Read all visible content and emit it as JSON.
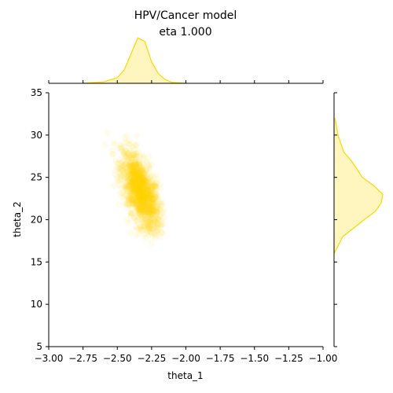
{
  "chart_data": {
    "type": "scatter",
    "title": "HPV/Cancer model",
    "subtitle": "eta 1.000",
    "xlabel": "theta_1",
    "ylabel": "theta_2",
    "xlim": [
      -3.0,
      -1.0
    ],
    "ylim": [
      5,
      35
    ],
    "xticks": [
      -3.0,
      -2.75,
      -2.5,
      -2.25,
      -2.0,
      -1.75,
      -1.5,
      -1.25,
      -1.0
    ],
    "xtick_labels": [
      "−3.00",
      "−2.75",
      "−2.50",
      "−2.25",
      "−2.00",
      "−1.75",
      "−1.50",
      "−1.25",
      "−1.00"
    ],
    "yticks": [
      5,
      10,
      15,
      20,
      25,
      30,
      35
    ],
    "ytick_labels": [
      "5",
      "10",
      "15",
      "20",
      "25",
      "30",
      "35"
    ],
    "grid": false,
    "color": "#ffd700",
    "joint": {
      "mean": [
        -2.33,
        23.3
      ],
      "sd": [
        0.07,
        2.3
      ],
      "correlation": -0.6,
      "x_range": [
        -2.7,
        -2.15
      ],
      "y_range": [
        17,
        32
      ]
    },
    "marginal_x": {
      "x": [
        -2.75,
        -2.6,
        -2.5,
        -2.45,
        -2.4,
        -2.35,
        -2.3,
        -2.25,
        -2.2,
        -2.15,
        -2.1,
        -2.0
      ],
      "density": [
        0.0,
        0.03,
        0.12,
        0.28,
        0.62,
        0.96,
        0.88,
        0.45,
        0.2,
        0.08,
        0.02,
        0.0
      ]
    },
    "marginal_y": {
      "y": [
        16,
        18,
        20,
        21,
        22,
        23,
        24,
        25,
        26,
        27,
        28,
        30,
        32
      ],
      "density": [
        0.0,
        0.18,
        0.62,
        0.85,
        0.97,
        1.0,
        0.82,
        0.58,
        0.47,
        0.35,
        0.2,
        0.08,
        0.02
      ]
    }
  }
}
